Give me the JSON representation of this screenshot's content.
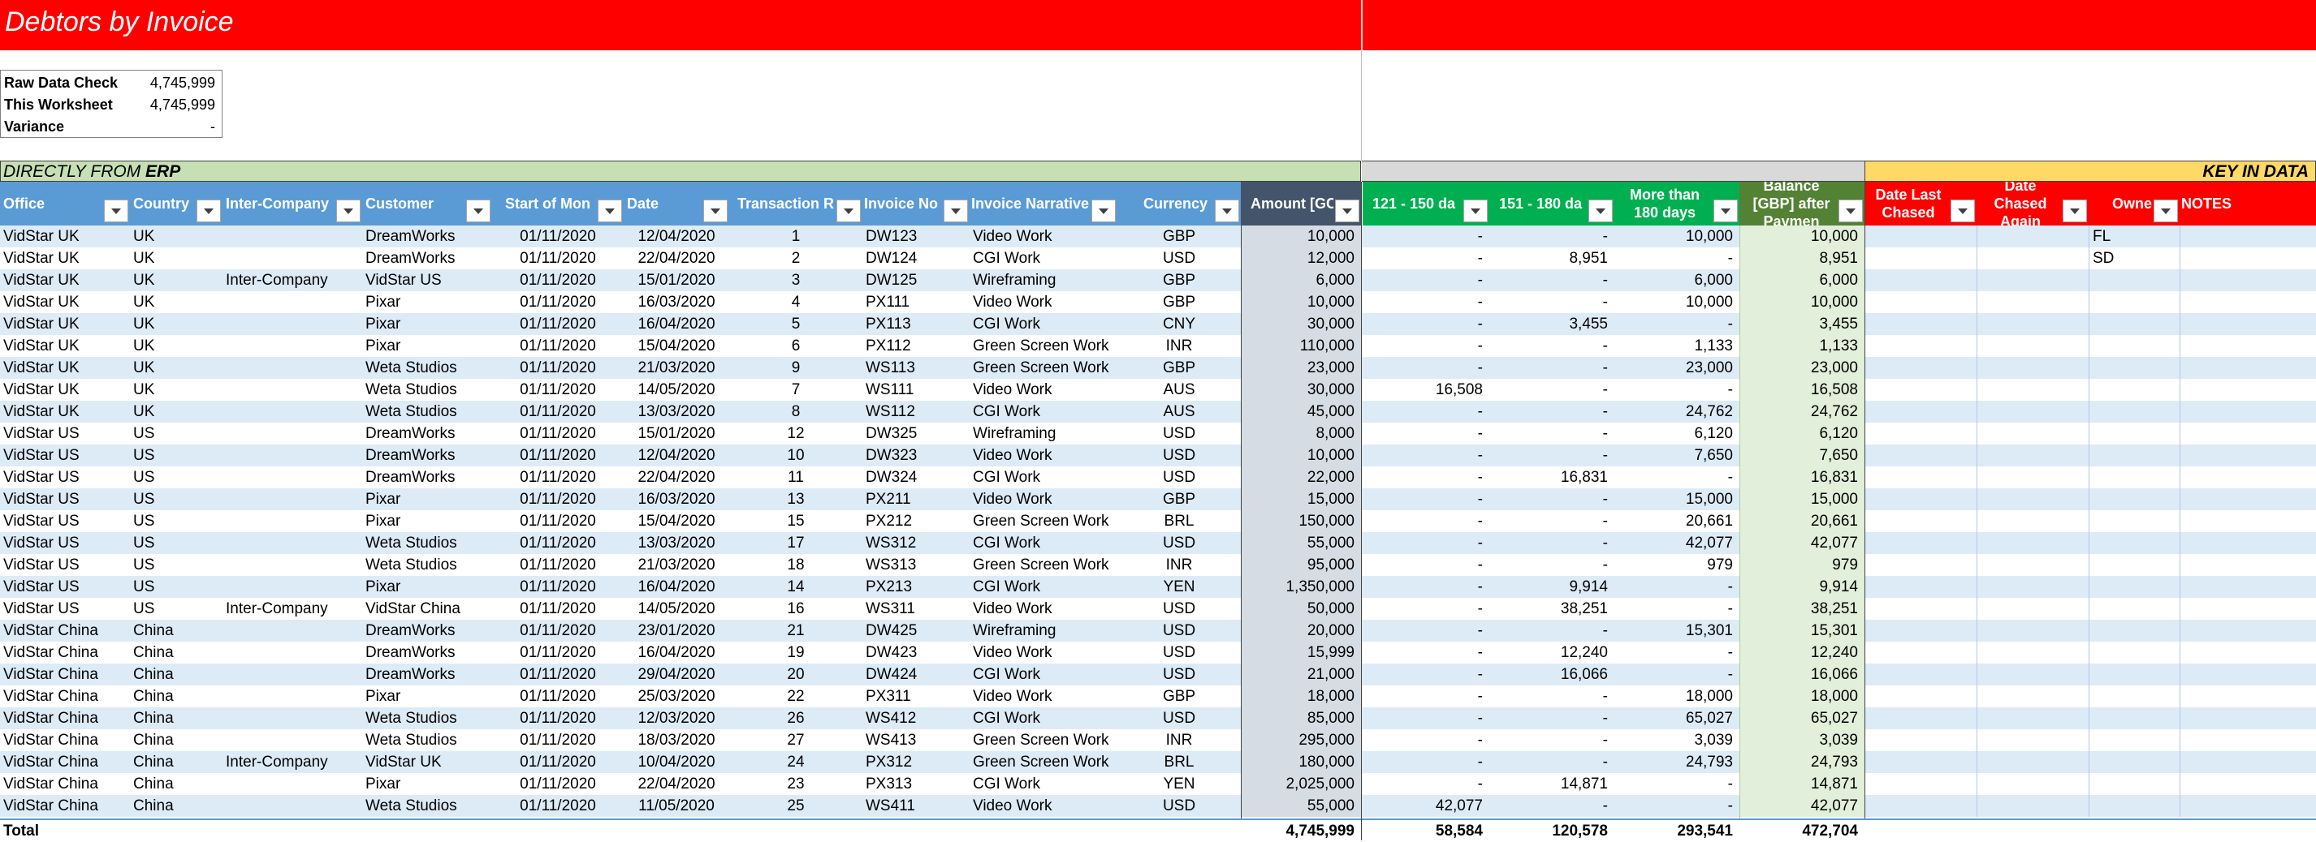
{
  "title": "Debtors by Invoice",
  "checks": [
    {
      "label": "Raw Data Check",
      "value": "4,745,999"
    },
    {
      "label": "This Worksheet",
      "value": "4,745,999"
    },
    {
      "label": "Variance",
      "value": "-"
    }
  ],
  "bands": {
    "erp_prefix": "DIRECTLY FROM ",
    "erp_bold": "ERP",
    "key": "KEY IN DATA"
  },
  "headers": {
    "office": "Office",
    "country": "Country",
    "intercompany": "Inter-Company",
    "customer": "Customer",
    "start": "Start of Mon",
    "date": "Date",
    "transaction": "Transaction R",
    "invoice_no": "Invoice No",
    "narrative": "Invoice Narrative",
    "currency": "Currency",
    "amount": "Amount [GC",
    "d121": "121 - 150 da",
    "d151": "151 - 180 da",
    "d180": "More than 180 days",
    "balance": "Balance [GBP] after Paymen",
    "last_chased": "Date Last Chased",
    "chased_again": "Date Chased Again",
    "owner": "Owne",
    "notes": "NOTES"
  },
  "rows": [
    {
      "office": "VidStar UK",
      "country": "UK",
      "ic": "",
      "customer": "DreamWorks",
      "start": "01/11/2020",
      "date": "12/04/2020",
      "tr": "1",
      "inv": "DW123",
      "narr": "Video Work",
      "cur": "GBP",
      "amt": "10,000",
      "d121": "-",
      "d151": "-",
      "d180": "10,000",
      "bal": "10,000",
      "owner": "FL"
    },
    {
      "office": "VidStar UK",
      "country": "UK",
      "ic": "",
      "customer": "DreamWorks",
      "start": "01/11/2020",
      "date": "22/04/2020",
      "tr": "2",
      "inv": "DW124",
      "narr": "CGI Work",
      "cur": "USD",
      "amt": "12,000",
      "d121": "-",
      "d151": "8,951",
      "d180": "-",
      "bal": "8,951",
      "owner": "SD"
    },
    {
      "office": "VidStar UK",
      "country": "UK",
      "ic": "Inter-Company",
      "customer": "VidStar US",
      "start": "01/11/2020",
      "date": "15/01/2020",
      "tr": "3",
      "inv": "DW125",
      "narr": "Wireframing",
      "cur": "GBP",
      "amt": "6,000",
      "d121": "-",
      "d151": "-",
      "d180": "6,000",
      "bal": "6,000",
      "owner": ""
    },
    {
      "office": "VidStar UK",
      "country": "UK",
      "ic": "",
      "customer": "Pixar",
      "start": "01/11/2020",
      "date": "16/03/2020",
      "tr": "4",
      "inv": "PX111",
      "narr": "Video Work",
      "cur": "GBP",
      "amt": "10,000",
      "d121": "-",
      "d151": "-",
      "d180": "10,000",
      "bal": "10,000",
      "owner": ""
    },
    {
      "office": "VidStar UK",
      "country": "UK",
      "ic": "",
      "customer": "Pixar",
      "start": "01/11/2020",
      "date": "16/04/2020",
      "tr": "5",
      "inv": "PX113",
      "narr": "CGI Work",
      "cur": "CNY",
      "amt": "30,000",
      "d121": "-",
      "d151": "3,455",
      "d180": "-",
      "bal": "3,455",
      "owner": ""
    },
    {
      "office": "VidStar UK",
      "country": "UK",
      "ic": "",
      "customer": "Pixar",
      "start": "01/11/2020",
      "date": "15/04/2020",
      "tr": "6",
      "inv": "PX112",
      "narr": "Green Screen Work",
      "cur": "INR",
      "amt": "110,000",
      "d121": "-",
      "d151": "-",
      "d180": "1,133",
      "bal": "1,133",
      "owner": ""
    },
    {
      "office": "VidStar UK",
      "country": "UK",
      "ic": "",
      "customer": "Weta Studios",
      "start": "01/11/2020",
      "date": "21/03/2020",
      "tr": "9",
      "inv": "WS113",
      "narr": "Green Screen Work",
      "cur": "GBP",
      "amt": "23,000",
      "d121": "-",
      "d151": "-",
      "d180": "23,000",
      "bal": "23,000",
      "owner": ""
    },
    {
      "office": "VidStar UK",
      "country": "UK",
      "ic": "",
      "customer": "Weta Studios",
      "start": "01/11/2020",
      "date": "14/05/2020",
      "tr": "7",
      "inv": "WS111",
      "narr": "Video Work",
      "cur": "AUS",
      "amt": "30,000",
      "d121": "16,508",
      "d151": "-",
      "d180": "-",
      "bal": "16,508",
      "owner": ""
    },
    {
      "office": "VidStar UK",
      "country": "UK",
      "ic": "",
      "customer": "Weta Studios",
      "start": "01/11/2020",
      "date": "13/03/2020",
      "tr": "8",
      "inv": "WS112",
      "narr": "CGI Work",
      "cur": "AUS",
      "amt": "45,000",
      "d121": "-",
      "d151": "-",
      "d180": "24,762",
      "bal": "24,762",
      "owner": ""
    },
    {
      "office": "VidStar US",
      "country": "US",
      "ic": "",
      "customer": "DreamWorks",
      "start": "01/11/2020",
      "date": "15/01/2020",
      "tr": "12",
      "inv": "DW325",
      "narr": "Wireframing",
      "cur": "USD",
      "amt": "8,000",
      "d121": "-",
      "d151": "-",
      "d180": "6,120",
      "bal": "6,120",
      "owner": ""
    },
    {
      "office": "VidStar US",
      "country": "US",
      "ic": "",
      "customer": "DreamWorks",
      "start": "01/11/2020",
      "date": "12/04/2020",
      "tr": "10",
      "inv": "DW323",
      "narr": "Video Work",
      "cur": "USD",
      "amt": "10,000",
      "d121": "-",
      "d151": "-",
      "d180": "7,650",
      "bal": "7,650",
      "owner": ""
    },
    {
      "office": "VidStar US",
      "country": "US",
      "ic": "",
      "customer": "DreamWorks",
      "start": "01/11/2020",
      "date": "22/04/2020",
      "tr": "11",
      "inv": "DW324",
      "narr": "CGI Work",
      "cur": "USD",
      "amt": "22,000",
      "d121": "-",
      "d151": "16,831",
      "d180": "-",
      "bal": "16,831",
      "owner": ""
    },
    {
      "office": "VidStar US",
      "country": "US",
      "ic": "",
      "customer": "Pixar",
      "start": "01/11/2020",
      "date": "16/03/2020",
      "tr": "13",
      "inv": "PX211",
      "narr": "Video Work",
      "cur": "GBP",
      "amt": "15,000",
      "d121": "-",
      "d151": "-",
      "d180": "15,000",
      "bal": "15,000",
      "owner": ""
    },
    {
      "office": "VidStar US",
      "country": "US",
      "ic": "",
      "customer": "Pixar",
      "start": "01/11/2020",
      "date": "15/04/2020",
      "tr": "15",
      "inv": "PX212",
      "narr": "Green Screen Work",
      "cur": "BRL",
      "amt": "150,000",
      "d121": "-",
      "d151": "-",
      "d180": "20,661",
      "bal": "20,661",
      "owner": ""
    },
    {
      "office": "VidStar US",
      "country": "US",
      "ic": "",
      "customer": "Weta Studios",
      "start": "01/11/2020",
      "date": "13/03/2020",
      "tr": "17",
      "inv": "WS312",
      "narr": "CGI Work",
      "cur": "USD",
      "amt": "55,000",
      "d121": "-",
      "d151": "-",
      "d180": "42,077",
      "bal": "42,077",
      "owner": ""
    },
    {
      "office": "VidStar US",
      "country": "US",
      "ic": "",
      "customer": "Weta Studios",
      "start": "01/11/2020",
      "date": "21/03/2020",
      "tr": "18",
      "inv": "WS313",
      "narr": "Green Screen Work",
      "cur": "INR",
      "amt": "95,000",
      "d121": "-",
      "d151": "-",
      "d180": "979",
      "bal": "979",
      "owner": ""
    },
    {
      "office": "VidStar US",
      "country": "US",
      "ic": "",
      "customer": "Pixar",
      "start": "01/11/2020",
      "date": "16/04/2020",
      "tr": "14",
      "inv": "PX213",
      "narr": "CGI Work",
      "cur": "YEN",
      "amt": "1,350,000",
      "d121": "-",
      "d151": "9,914",
      "d180": "-",
      "bal": "9,914",
      "owner": ""
    },
    {
      "office": "VidStar US",
      "country": "US",
      "ic": "Inter-Company",
      "customer": "VidStar China",
      "start": "01/11/2020",
      "date": "14/05/2020",
      "tr": "16",
      "inv": "WS311",
      "narr": "Video Work",
      "cur": "USD",
      "amt": "50,000",
      "d121": "-",
      "d151": "38,251",
      "d180": "-",
      "bal": "38,251",
      "owner": ""
    },
    {
      "office": "VidStar China",
      "country": "China",
      "ic": "",
      "customer": "DreamWorks",
      "start": "01/11/2020",
      "date": "23/01/2020",
      "tr": "21",
      "inv": "DW425",
      "narr": "Wireframing",
      "cur": "USD",
      "amt": "20,000",
      "d121": "-",
      "d151": "-",
      "d180": "15,301",
      "bal": "15,301",
      "owner": ""
    },
    {
      "office": "VidStar China",
      "country": "China",
      "ic": "",
      "customer": "DreamWorks",
      "start": "01/11/2020",
      "date": "16/04/2020",
      "tr": "19",
      "inv": "DW423",
      "narr": "Video Work",
      "cur": "USD",
      "amt": "15,999",
      "d121": "-",
      "d151": "12,240",
      "d180": "-",
      "bal": "12,240",
      "owner": ""
    },
    {
      "office": "VidStar China",
      "country": "China",
      "ic": "",
      "customer": "DreamWorks",
      "start": "01/11/2020",
      "date": "29/04/2020",
      "tr": "20",
      "inv": "DW424",
      "narr": "CGI Work",
      "cur": "USD",
      "amt": "21,000",
      "d121": "-",
      "d151": "16,066",
      "d180": "-",
      "bal": "16,066",
      "owner": ""
    },
    {
      "office": "VidStar China",
      "country": "China",
      "ic": "",
      "customer": "Pixar",
      "start": "01/11/2020",
      "date": "25/03/2020",
      "tr": "22",
      "inv": "PX311",
      "narr": "Video Work",
      "cur": "GBP",
      "amt": "18,000",
      "d121": "-",
      "d151": "-",
      "d180": "18,000",
      "bal": "18,000",
      "owner": ""
    },
    {
      "office": "VidStar China",
      "country": "China",
      "ic": "",
      "customer": "Weta Studios",
      "start": "01/11/2020",
      "date": "12/03/2020",
      "tr": "26",
      "inv": "WS412",
      "narr": "CGI Work",
      "cur": "USD",
      "amt": "85,000",
      "d121": "-",
      "d151": "-",
      "d180": "65,027",
      "bal": "65,027",
      "owner": ""
    },
    {
      "office": "VidStar China",
      "country": "China",
      "ic": "",
      "customer": "Weta Studios",
      "start": "01/11/2020",
      "date": "18/03/2020",
      "tr": "27",
      "inv": "WS413",
      "narr": "Green Screen Work",
      "cur": "INR",
      "amt": "295,000",
      "d121": "-",
      "d151": "-",
      "d180": "3,039",
      "bal": "3,039",
      "owner": ""
    },
    {
      "office": "VidStar China",
      "country": "China",
      "ic": "Inter-Company",
      "customer": "VidStar UK",
      "start": "01/11/2020",
      "date": "10/04/2020",
      "tr": "24",
      "inv": "PX312",
      "narr": "Green Screen Work",
      "cur": "BRL",
      "amt": "180,000",
      "d121": "-",
      "d151": "-",
      "d180": "24,793",
      "bal": "24,793",
      "owner": ""
    },
    {
      "office": "VidStar China",
      "country": "China",
      "ic": "",
      "customer": "Pixar",
      "start": "01/11/2020",
      "date": "22/04/2020",
      "tr": "23",
      "inv": "PX313",
      "narr": "CGI Work",
      "cur": "YEN",
      "amt": "2,025,000",
      "d121": "-",
      "d151": "14,871",
      "d180": "-",
      "bal": "14,871",
      "owner": ""
    },
    {
      "office": "VidStar China",
      "country": "China",
      "ic": "",
      "customer": "Weta Studios",
      "start": "01/11/2020",
      "date": "11/05/2020",
      "tr": "25",
      "inv": "WS411",
      "narr": "Video Work",
      "cur": "USD",
      "amt": "55,000",
      "d121": "42,077",
      "d151": "-",
      "d180": "-",
      "bal": "42,077",
      "owner": ""
    }
  ],
  "total": {
    "label": "Total",
    "amount": "4,745,999",
    "d121": "58,584",
    "d151": "120,578",
    "d180": "293,541",
    "balance": "472,704"
  },
  "colors": {
    "title_bar": "#ff0000",
    "header_blue": "#5b9bd5",
    "header_navy": "#44546a",
    "header_green": "#00b050",
    "header_olive": "#548235",
    "band_erp": "#c6e0b4",
    "band_key": "#ffd966",
    "row_alt": "#ddebf7"
  }
}
